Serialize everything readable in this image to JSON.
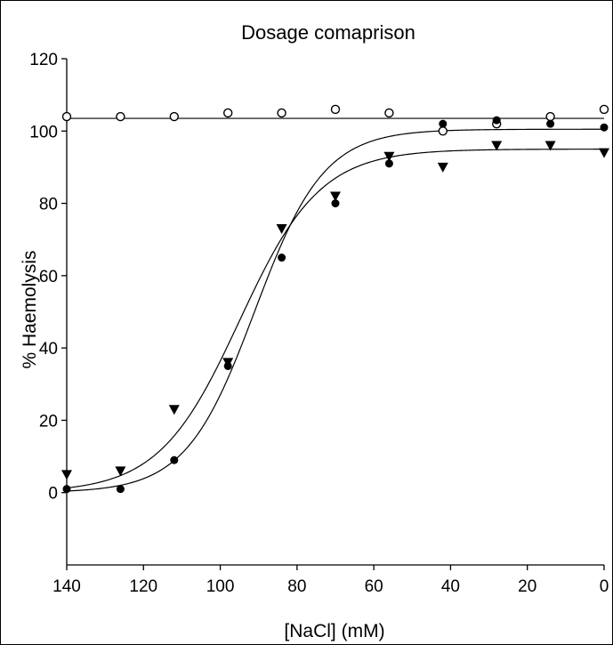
{
  "chart_data": {
    "type": "scatter",
    "title": "Dosage comaprison",
    "xlabel": "[NaCl] (mM)",
    "ylabel": "% Haemolysis",
    "xlim": [
      140,
      0
    ],
    "ylim": [
      -20,
      120
    ],
    "x_ticks": [
      "140",
      "120",
      "100",
      "80",
      "60",
      "40",
      "20",
      "0"
    ],
    "y_ticks": [
      "0",
      "20",
      "40",
      "60",
      "80",
      "100",
      "120"
    ],
    "x_tick_values": [
      140,
      120,
      100,
      80,
      60,
      40,
      20,
      0
    ],
    "y_tick_values": [
      0,
      20,
      40,
      60,
      80,
      100,
      120
    ],
    "grid": false,
    "legend": "none",
    "series": [
      {
        "marker": "open-circle",
        "x": [
          140,
          126,
          112,
          98,
          84,
          70,
          56,
          42,
          28,
          14,
          0
        ],
        "y": [
          104,
          104,
          104,
          105,
          105,
          106,
          105,
          100,
          102,
          104,
          106
        ],
        "fit": {
          "type": "constant",
          "value": 103.5
        }
      },
      {
        "marker": "filled-circle",
        "x": [
          140,
          126,
          112,
          98,
          84,
          70,
          56,
          42,
          28,
          14,
          0
        ],
        "y": [
          1,
          1,
          9,
          35,
          65,
          80,
          91,
          102,
          103,
          102,
          101
        ],
        "fit": {
          "type": "sigmoid",
          "bottom": 0,
          "top": 100.5,
          "x50": 91,
          "slope": 9
        }
      },
      {
        "marker": "filled-triangle-down",
        "x": [
          140,
          126,
          112,
          98,
          84,
          70,
          56,
          42,
          28,
          14,
          0
        ],
        "y": [
          5,
          6,
          23,
          36,
          73,
          82,
          93,
          90,
          96,
          96,
          94
        ],
        "fit": {
          "type": "sigmoid",
          "bottom": 0,
          "top": 95,
          "x50": 95,
          "slope": 10.5
        }
      }
    ]
  }
}
